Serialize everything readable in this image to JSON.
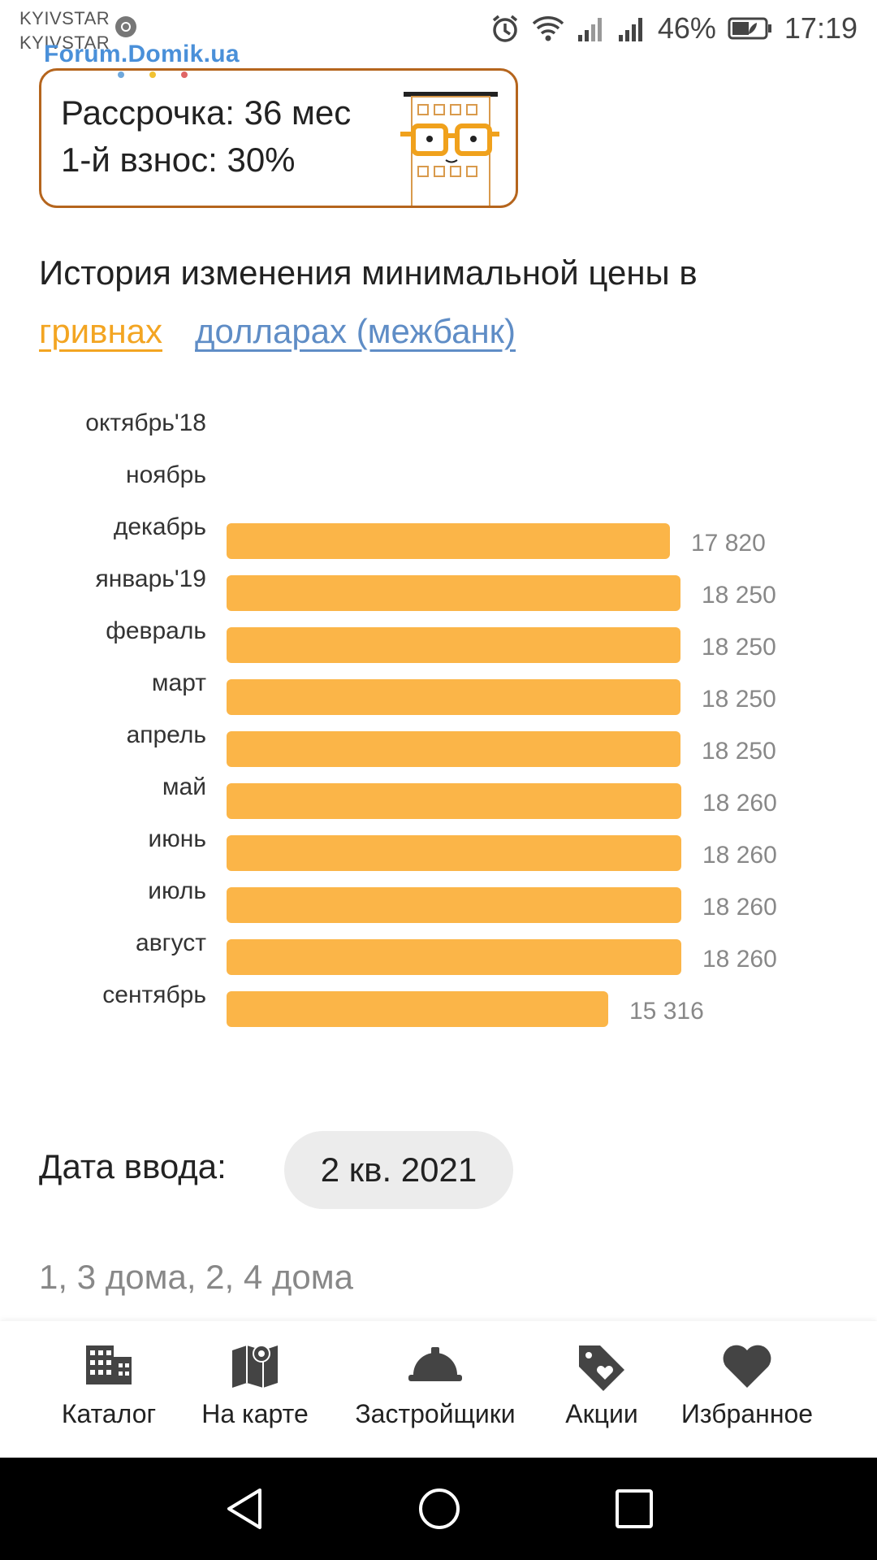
{
  "status_bar": {
    "carrier_1": "KYIVSTAR",
    "carrier_2": "KYIVSTAR",
    "battery": "46%",
    "time": "17:19",
    "icons": [
      "chrome-icon",
      "alarm-icon",
      "wifi-icon",
      "signal-icon",
      "signal-icon",
      "battery-icon"
    ]
  },
  "watermark": {
    "text": "Forum.Domik.ua",
    "dot_colors": [
      "#6fa8dc",
      "#f1c232",
      "#e06666"
    ]
  },
  "promo": {
    "line_1": "Рассрочка: 36 мес",
    "line_2": "1-й взнос: 30%",
    "border_color": "#b5651d",
    "mascot": "building-with-glasses-icon"
  },
  "history": {
    "title": "История изменения минимальной цены в",
    "tab_uah": "гривнах",
    "tab_usd": "долларах (межбанк)",
    "tab_uah_color": "#f3a522",
    "tab_usd_color": "#5f8dc6"
  },
  "chart_data": {
    "type": "bar",
    "orientation": "horizontal",
    "bar_color": "#fbb548",
    "categories": [
      "октябрь'18",
      "ноябрь",
      "декабрь",
      "январь'19",
      "февраль",
      "март",
      "апрель",
      "май",
      "июнь",
      "июль",
      "август",
      "сентябрь"
    ],
    "values": [
      null,
      null,
      17820,
      18250,
      18250,
      18250,
      18250,
      18260,
      18260,
      18260,
      18260,
      15316
    ],
    "value_labels": [
      "",
      "",
      "17 820",
      "18 250",
      "18 250",
      "18 250",
      "18 250",
      "18 260",
      "18 260",
      "18 260",
      "18 260",
      "15 316"
    ],
    "xlim": [
      0,
      18920
    ]
  },
  "details": {
    "date_label": "Дата ввода:",
    "date_value": "2 кв. 2021",
    "houses": "1, 3 дома, 2, 4 дома"
  },
  "bottom_nav": {
    "items": [
      {
        "label": "Каталог",
        "icon": "building-icon"
      },
      {
        "label": "На карте",
        "icon": "map-pin-icon"
      },
      {
        "label": "Застройщики",
        "icon": "hard-hat-icon"
      },
      {
        "label": "Акции",
        "icon": "tag-heart-icon"
      },
      {
        "label": "Избранное",
        "icon": "heart-icon"
      }
    ]
  },
  "system_nav": {
    "buttons": [
      "back-icon",
      "home-icon",
      "recents-icon"
    ]
  }
}
